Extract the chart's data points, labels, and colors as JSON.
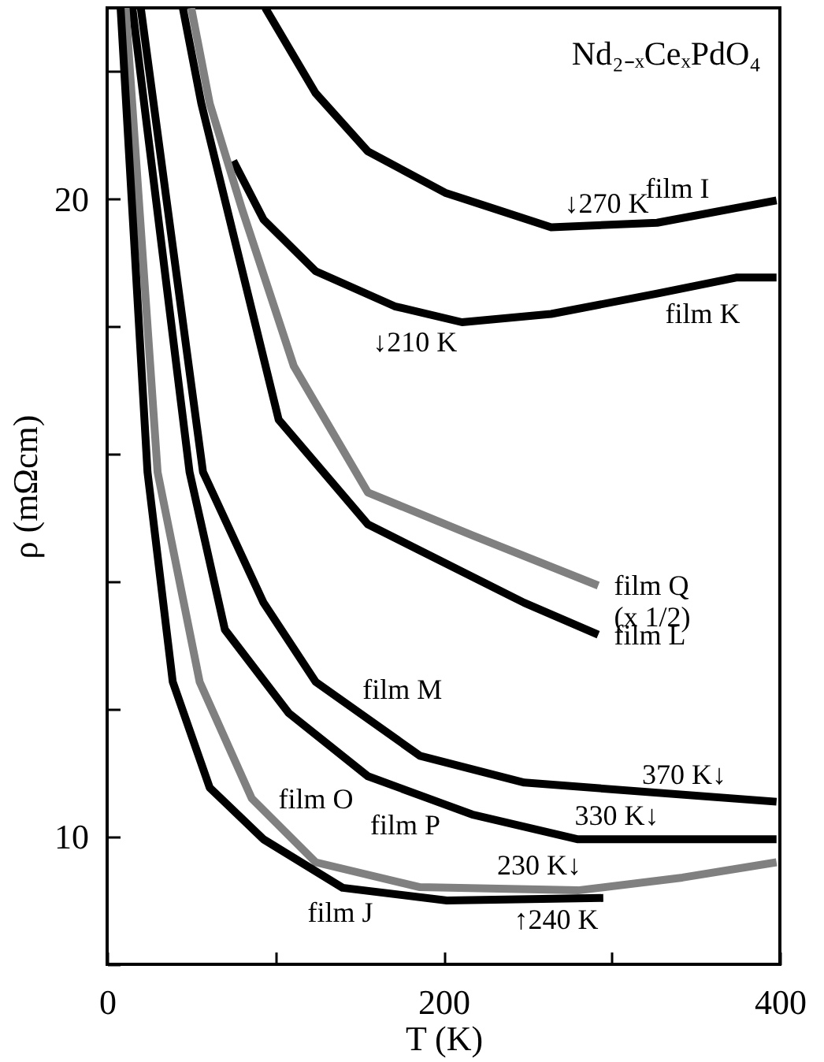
{
  "chart_data": {
    "type": "line",
    "xlabel": "T (K)",
    "ylabel": "ρ (mΩcm)",
    "xlim": [
      0,
      400
    ],
    "xticks": [
      0,
      {
        "value": 100,
        "label": null
      },
      200,
      {
        "value": 300,
        "label": null
      },
      400
    ],
    "ylim": [
      8,
      23
    ],
    "yticks": [
      {
        "value": 8,
        "label": null
      },
      10,
      {
        "value": 12,
        "label": null
      },
      {
        "value": 14,
        "label": null
      },
      {
        "value": 16,
        "label": null
      },
      {
        "value": 18,
        "label": null
      },
      20,
      {
        "value": 22,
        "label": null
      }
    ],
    "grid": false,
    "marker": "none",
    "line_style": "solid",
    "series": [
      {
        "color": "#000000",
        "x": [
          94,
          124,
          155,
          201,
          264,
          327,
          398
        ],
        "values": [
          23,
          21.66,
          20.75,
          20.1,
          19.56,
          19.63,
          19.98
        ]
      },
      {
        "color": "#000000",
        "x": [
          75,
          93,
          124,
          171,
          211,
          264,
          327,
          374,
          398
        ],
        "values": [
          20.6,
          19.68,
          18.87,
          18.32,
          18.07,
          18.2,
          18.52,
          18.77,
          18.77
        ]
      },
      {
        "color": "#808080",
        "x": [
          50,
          61,
          80,
          111,
          155,
          217,
          292
        ],
        "values": [
          23,
          21.5,
          19.86,
          17.38,
          15.4,
          14.73,
          13.94
        ]
      },
      {
        "color": "#000000",
        "x": [
          45,
          56,
          102,
          155,
          186,
          248,
          292
        ],
        "values": [
          23,
          21.5,
          16.54,
          14.9,
          14.49,
          13.67,
          13.17
        ]
      },
      {
        "color": "#000000",
        "x": [
          20,
          57,
          93,
          124,
          186,
          248,
          398
        ],
        "values": [
          23,
          15.72,
          13.67,
          12.43,
          11.27,
          10.85,
          10.55
        ]
      },
      {
        "color": "#000000",
        "x": [
          15,
          49,
          70,
          108,
          155,
          217,
          280,
          398
        ],
        "values": [
          23,
          15.72,
          13.25,
          11.94,
          10.95,
          10.35,
          9.96,
          9.96
        ]
      },
      {
        "color": "#808080",
        "x": [
          11,
          30,
          55,
          86,
          124,
          186,
          280,
          342,
          398
        ],
        "values": [
          23,
          15.72,
          12.43,
          10.6,
          9.6,
          9.21,
          9.16,
          9.36,
          9.6
        ]
      },
      {
        "color": "#000000",
        "x": [
          8,
          24,
          39,
          61,
          93,
          140,
          202,
          295
        ],
        "values": [
          23,
          15.72,
          12.43,
          10.77,
          9.96,
          9.2,
          9.0,
          9.04
        ]
      }
    ],
    "annotations": [
      "Nd₂₋ₓCeₓPdO₄",
      {
        "text": "↓270 K",
        "x": 270,
        "y": 19.57
      },
      {
        "text": "film I",
        "x": 360,
        "y": 19.8
      },
      {
        "text": "↓210 K",
        "x": 210,
        "y": 18.08
      },
      {
        "text": "film K",
        "x": 330,
        "y": 18.53
      },
      {
        "text": "film Q\n(x 1/2)",
        "x": 292,
        "y": 13.94
      },
      {
        "text": "film L",
        "x": 292,
        "y": 13.17
      },
      {
        "text": "film M",
        "x": 150,
        "y": 11.94
      },
      {
        "text": "film P",
        "x": 200,
        "y": 10.51
      },
      {
        "text": "370 K↓",
        "x": 370,
        "y": 10.61
      },
      {
        "text": "330 K↓",
        "x": 330,
        "y": 9.96
      },
      {
        "text": "230 K↓",
        "x": 230,
        "y": 9.19
      },
      {
        "text": "film O",
        "x": 100,
        "y": 10.23
      },
      {
        "text": "film J",
        "x": 160,
        "y": 9.14
      },
      {
        "text": "↑240 K",
        "x": 240,
        "y": 9.02
      }
    ]
  }
}
